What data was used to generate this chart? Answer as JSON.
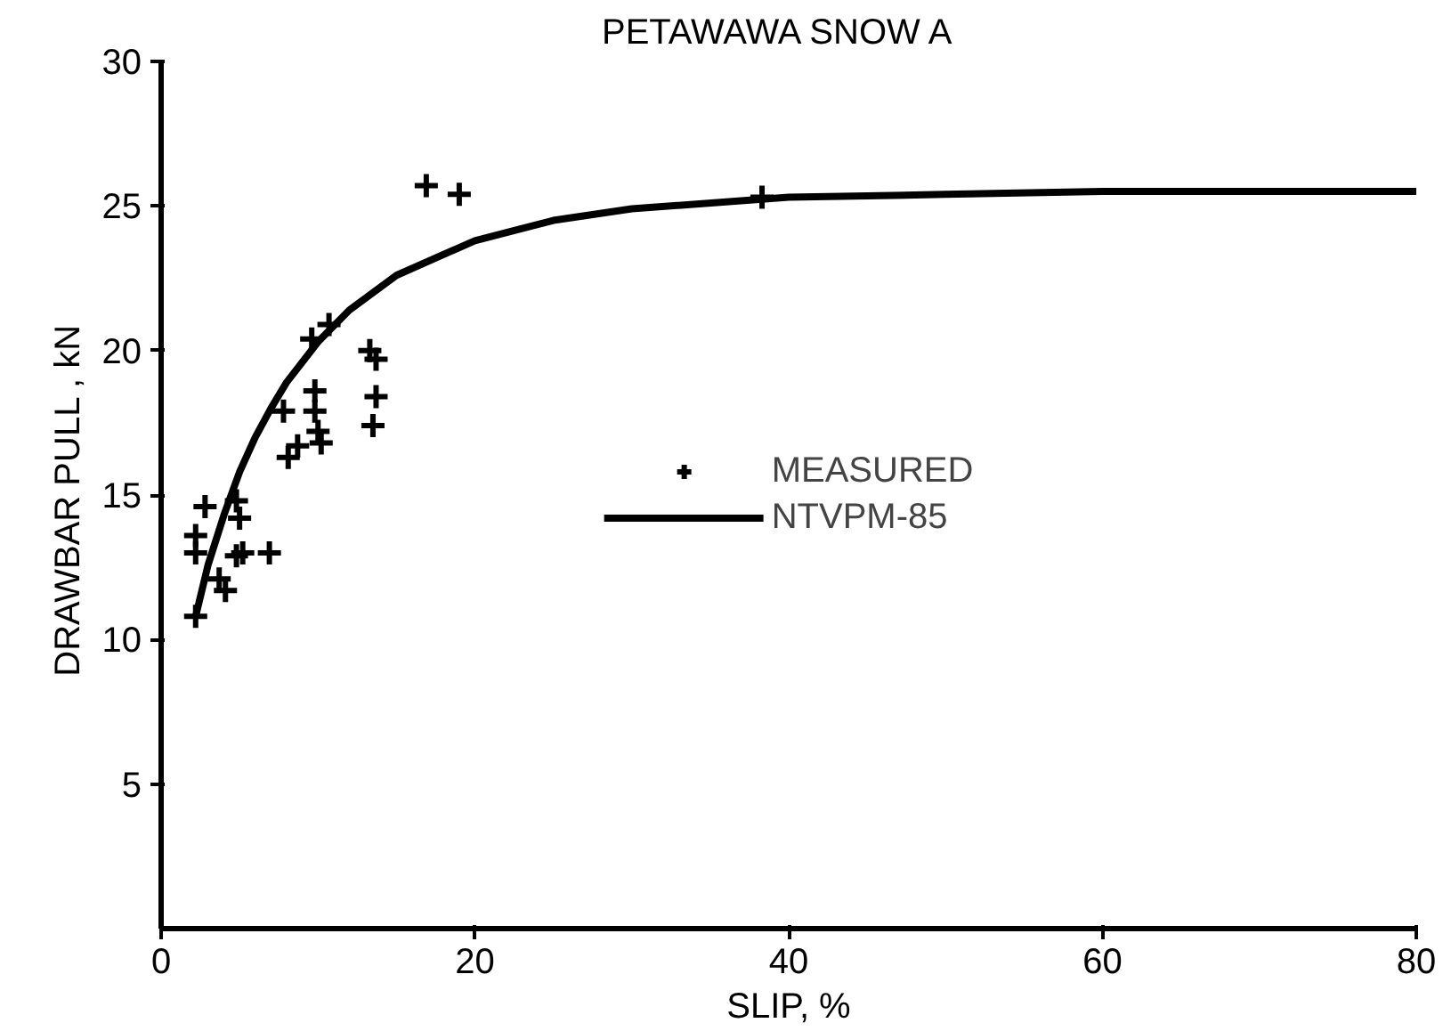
{
  "chart_data": {
    "type": "scatter",
    "title": "PETAWAWA  SNOW  A",
    "xlabel": "SLIP, %",
    "ylabel": "DRAWBAR  PULL , kN",
    "xlim": [
      0,
      80
    ],
    "ylim": [
      0,
      30
    ],
    "xticks": [
      0,
      20,
      40,
      60,
      80
    ],
    "yticks": [
      5,
      10,
      15,
      20,
      25,
      30
    ],
    "grid": false,
    "legend": "center",
    "series": [
      {
        "name": "MEASURED",
        "marker": "cross",
        "color": "#000000",
        "x": [
          2.2,
          2.2,
          2.2,
          2.8,
          3.7,
          4.1,
          4.8,
          5.0,
          5.2,
          4.8,
          6.9,
          7.8,
          8.1,
          8.7,
          9.6,
          9.8,
          9.8,
          10.0,
          10.2,
          10.7,
          13.3,
          13.7,
          13.7,
          13.5,
          16.9,
          19.0,
          38.3
        ],
        "values": [
          10.8,
          13.0,
          13.6,
          14.6,
          12.1,
          11.7,
          14.8,
          14.2,
          13.0,
          12.9,
          13.0,
          17.9,
          16.3,
          16.7,
          20.4,
          18.6,
          17.9,
          17.2,
          16.8,
          20.9,
          20.0,
          19.7,
          18.4,
          17.4,
          25.7,
          25.4,
          25.3
        ]
      },
      {
        "name": "NTVPM-85",
        "type": "line",
        "line_style": "solid",
        "color": "#000000",
        "x": [
          2.2,
          3,
          4,
          5,
          6,
          7,
          8,
          10,
          12,
          15,
          20,
          25,
          30,
          40,
          50,
          60,
          80
        ],
        "values": [
          10.8,
          12.6,
          14.3,
          15.8,
          17.0,
          18.0,
          18.9,
          20.3,
          21.4,
          22.6,
          23.8,
          24.5,
          24.9,
          25.3,
          25.4,
          25.5,
          25.5
        ]
      }
    ]
  }
}
